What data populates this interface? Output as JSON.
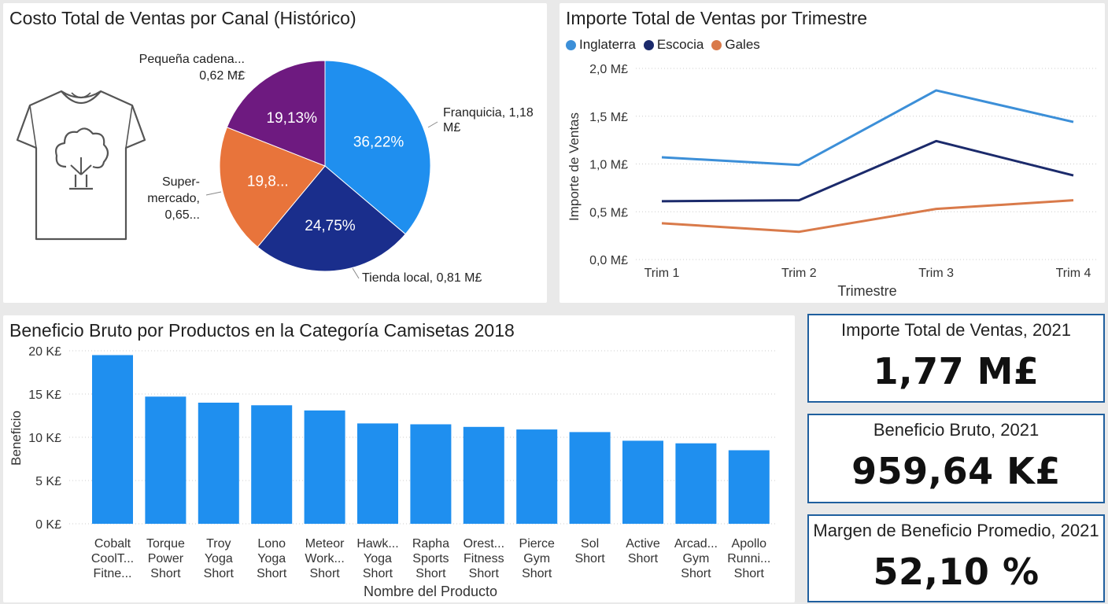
{
  "pie": {
    "title": "Costo Total de Ventas por Canal (Histórico)",
    "tshirt_icon": "tshirt-tree-icon",
    "outside_labels": {
      "franquicia": [
        "Franquicia, 1,18",
        "M£"
      ],
      "tienda": [
        "Tienda local, 0,81 M£"
      ],
      "super": [
        "Super-",
        "mercado,",
        "0,65..."
      ],
      "pequena": [
        "Pequeña cadena...",
        "0,62 M£"
      ]
    }
  },
  "line": {
    "title": "Importe Total de Ventas por Trimestre"
  },
  "bar": {
    "title": "Beneficio Bruto por Productos en la Categoría Camisetas 2018"
  },
  "kpis": [
    {
      "label": "Importe Total de Ventas, 2021",
      "value": "1,77 M£"
    },
    {
      "label": "Beneficio Bruto, 2021",
      "value": "959,64 K£"
    },
    {
      "label": "Margen de Beneficio Promedio, 2021",
      "value": "52,10 %"
    }
  ],
  "chart_data": [
    {
      "type": "pie",
      "title": "Costo Total de Ventas por Canal (Histórico)",
      "slices": [
        {
          "name": "Franquicia",
          "value": 1.18,
          "pct_label": "36,22%",
          "color": "#1f8fef"
        },
        {
          "name": "Tienda local",
          "value": 0.81,
          "pct_label": "24,75%",
          "color": "#1a2e8c"
        },
        {
          "name": "Supermercado",
          "value": 0.65,
          "pct_label": "19,8...",
          "color": "#e8743b"
        },
        {
          "name": "Pequeña cadena",
          "value": 0.62,
          "pct_label": "19,13%",
          "color": "#6e1a80"
        }
      ]
    },
    {
      "type": "line",
      "title": "Importe Total de Ventas por Trimestre",
      "xlabel": "Trimestre",
      "ylabel": "Importe de Ventas",
      "categories": [
        "Trim 1",
        "Trim 2",
        "Trim 3",
        "Trim 4"
      ],
      "yticks": [
        "0,0 M£",
        "0,5 M£",
        "1,0 M£",
        "1,5 M£",
        "2,0 M£"
      ],
      "ylim": [
        0,
        2.0
      ],
      "grid": true,
      "legend": "top-left",
      "series": [
        {
          "name": "Inglaterra",
          "color": "#3c8fd8",
          "values": [
            1.07,
            0.99,
            1.77,
            1.44
          ]
        },
        {
          "name": "Escocia",
          "color": "#1b2a6b",
          "values": [
            0.61,
            0.62,
            1.24,
            0.88
          ]
        },
        {
          "name": "Gales",
          "color": "#d97a4a",
          "values": [
            0.38,
            0.29,
            0.53,
            0.62
          ]
        }
      ]
    },
    {
      "type": "bar",
      "title": "Beneficio Bruto por Productos en la Categoría Camisetas 2018",
      "xlabel": "Nombre del Producto",
      "ylabel": "Beneficio",
      "yticks": [
        "0 K£",
        "5 K£",
        "10 K£",
        "15 K£",
        "20 K£"
      ],
      "ylim": [
        0,
        20
      ],
      "grid": true,
      "color": "#1f8fef",
      "categories": [
        [
          "Cobalt",
          "CoolT...",
          "Fitne..."
        ],
        [
          "Torque",
          "Power",
          "Short"
        ],
        [
          "Troy",
          "Yoga",
          "Short"
        ],
        [
          "Lono",
          "Yoga",
          "Short"
        ],
        [
          "Meteor",
          "Work...",
          "Short"
        ],
        [
          "Hawk...",
          "Yoga",
          "Short"
        ],
        [
          "Rapha",
          "Sports",
          "Short"
        ],
        [
          "Orest...",
          "Fitness",
          "Short"
        ],
        [
          "Pierce",
          "Gym",
          "Short"
        ],
        [
          "Sol",
          "Short"
        ],
        [
          "Active",
          "Short"
        ],
        [
          "Arcad...",
          "Gym",
          "Short"
        ],
        [
          "Apollo",
          "Runni...",
          "Short"
        ]
      ],
      "values": [
        19.5,
        14.7,
        14.0,
        13.7,
        13.1,
        11.6,
        11.5,
        11.2,
        10.9,
        10.6,
        9.6,
        9.3,
        8.5
      ]
    }
  ]
}
